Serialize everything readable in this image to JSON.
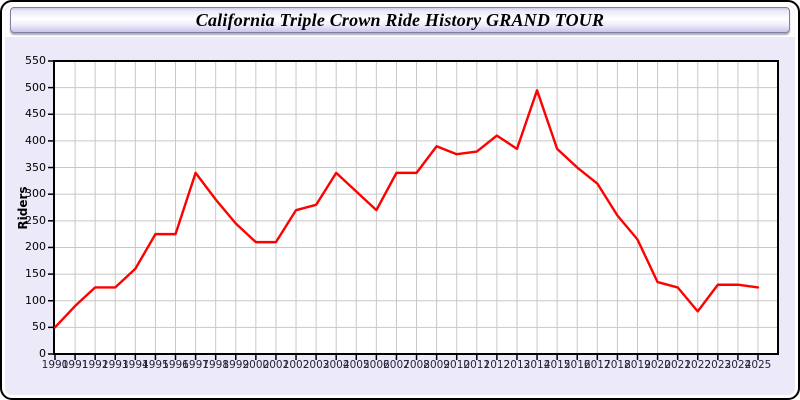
{
  "window": {
    "title": "California Triple Crown Ride History GRAND TOUR"
  },
  "chart_data": {
    "type": "line",
    "title": "California Triple Crown Ride History GRAND TOUR",
    "xlabel": "",
    "ylabel": "Riders",
    "x": [
      1990,
      1991,
      1992,
      1993,
      1994,
      1995,
      1996,
      1997,
      1998,
      1999,
      2000,
      2001,
      2002,
      2003,
      2004,
      2005,
      2006,
      2007,
      2008,
      2009,
      2010,
      2011,
      2012,
      2013,
      2014,
      2015,
      2016,
      2017,
      2018,
      2019,
      2020,
      2021,
      2022,
      2023,
      2024,
      2025
    ],
    "series": [
      {
        "name": "Riders",
        "color": "#fe0000",
        "values": [
          50,
          90,
          125,
          125,
          160,
          225,
          225,
          340,
          290,
          245,
          210,
          210,
          270,
          280,
          340,
          305,
          270,
          340,
          340,
          390,
          375,
          380,
          410,
          385,
          495,
          385,
          350,
          320,
          260,
          215,
          135,
          125,
          80,
          130,
          130,
          125
        ]
      }
    ],
    "ylim": [
      0,
      550
    ],
    "ytick_step": 50,
    "grid": true,
    "legend_position": "none"
  },
  "colors": {
    "background": "#eceaf9",
    "plot_background": "#ffffff",
    "gridline": "#c8c8c8",
    "line": "#fe0000",
    "axis": "#000000",
    "x_tick_label": "#24243a"
  }
}
